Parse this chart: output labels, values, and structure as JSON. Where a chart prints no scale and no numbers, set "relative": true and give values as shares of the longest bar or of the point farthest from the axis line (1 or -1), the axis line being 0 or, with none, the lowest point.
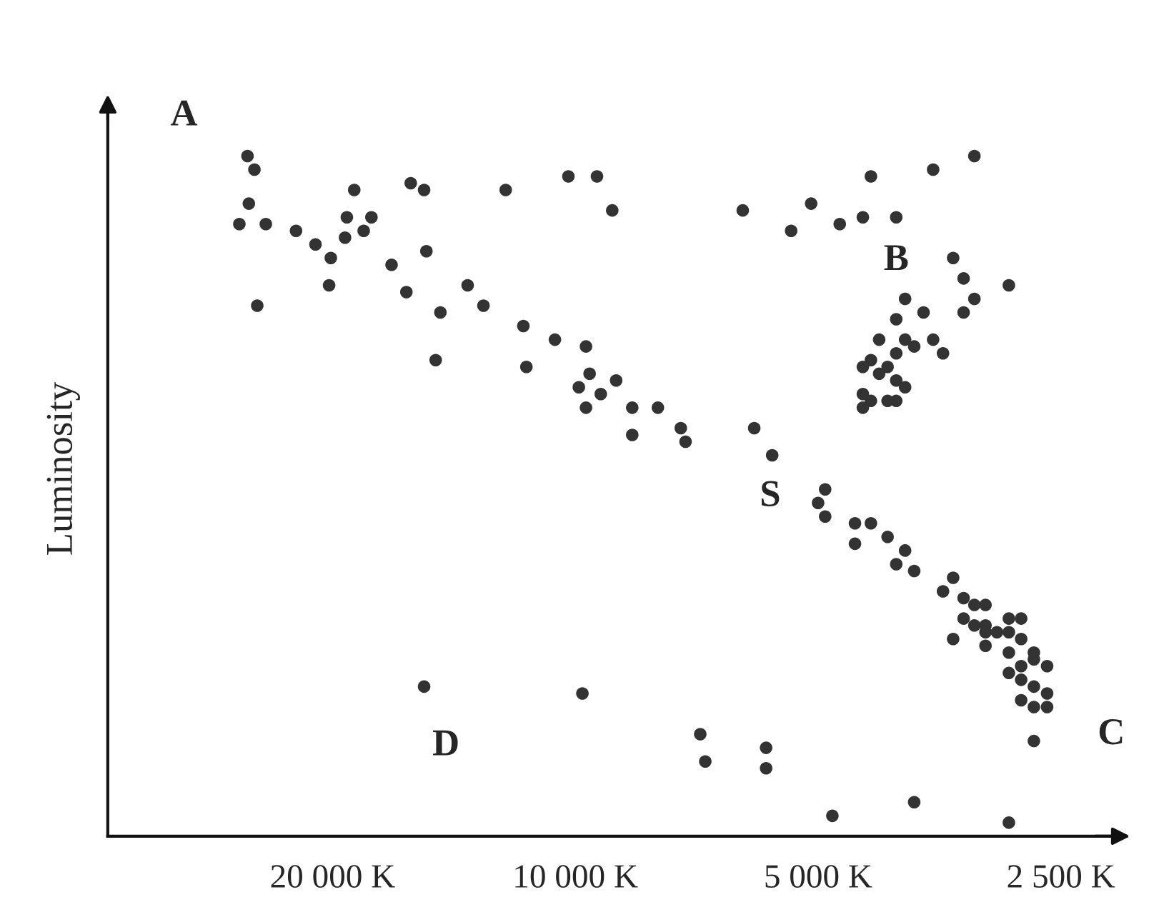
{
  "chart_data": {
    "type": "scatter",
    "ylabel": "Luminosity",
    "relative": true,
    "log": "x",
    "xlim": [
      38000,
      2100
    ],
    "xticks": [
      {
        "value": 20000,
        "label": "20 000 K"
      },
      {
        "value": 10000,
        "label": "10 000 K"
      },
      {
        "value": 5000,
        "label": "5 000 K"
      },
      {
        "value": 2500,
        "label": "2 500 K"
      }
    ],
    "tick_labels": "x",
    "grid": false,
    "legend": false,
    "marker": "circle",
    "series": [
      {
        "color": "#333333",
        "x": [
          25500,
          25000,
          18800,
          16000,
          15400,
          12200,
          10200,
          9400,
          9000,
          25400,
          26100,
          24200,
          22200,
          19200,
          17900,
          18300,
          19300,
          21000,
          20100,
          15300,
          16900,
          20200,
          16200,
          13600,
          13000,
          24800,
          14700,
          11600,
          10600,
          9700,
          14900,
          11500,
          9600,
          8900,
          9900,
          9300,
          9700,
          8500,
          7900,
          8500,
          7400,
          7300,
          6200,
          5100,
          5400,
          6000,
          5700,
          7000,
          6900,
          5800,
          5800,
          9800,
          15400,
          4700,
          4300,
          4400,
          4000,
          3600,
          3200,
          3400,
          3300,
          2900,
          3200,
          3300,
          3900,
          4000,
          3700,
          3600,
          3500,
          4200,
          3900,
          3800,
          4000,
          4300,
          4100,
          4400,
          4200,
          4000,
          3900,
          4400,
          4300,
          4100,
          4000,
          4400,
          4900,
          5000,
          4900,
          4500,
          4300,
          4500,
          4100,
          3900,
          4000,
          3800,
          3400,
          3500,
          3300,
          3200,
          3100,
          3300,
          3200,
          3100,
          3100,
          3000,
          2900,
          2800,
          2900,
          3400,
          3100,
          2900,
          2800,
          2700,
          2800,
          2700,
          2900,
          2800,
          2600,
          2700,
          2600,
          2800,
          2700,
          2600,
          2700,
          4800,
          3800,
          2900
        ],
        "values": [
          1.0,
          0.98,
          0.95,
          0.96,
          0.95,
          0.95,
          0.97,
          0.97,
          0.92,
          0.93,
          0.9,
          0.9,
          0.89,
          0.91,
          0.91,
          0.89,
          0.88,
          0.87,
          0.85,
          0.86,
          0.84,
          0.81,
          0.8,
          0.81,
          0.78,
          0.78,
          0.77,
          0.75,
          0.73,
          0.72,
          0.7,
          0.69,
          0.68,
          0.67,
          0.66,
          0.65,
          0.63,
          0.63,
          0.63,
          0.59,
          0.6,
          0.58,
          0.92,
          0.93,
          0.89,
          0.6,
          0.56,
          0.15,
          0.11,
          0.13,
          0.1,
          0.21,
          0.22,
          0.9,
          0.97,
          0.91,
          0.91,
          0.98,
          1.0,
          0.85,
          0.82,
          0.81,
          0.79,
          0.77,
          0.79,
          0.76,
          0.77,
          0.73,
          0.71,
          0.73,
          0.73,
          0.72,
          0.71,
          0.7,
          0.69,
          0.69,
          0.68,
          0.67,
          0.66,
          0.65,
          0.64,
          0.64,
          0.64,
          0.63,
          0.51,
          0.49,
          0.47,
          0.46,
          0.46,
          0.43,
          0.44,
          0.42,
          0.4,
          0.39,
          0.38,
          0.36,
          0.35,
          0.34,
          0.34,
          0.32,
          0.31,
          0.31,
          0.3,
          0.3,
          0.32,
          0.32,
          0.3,
          0.29,
          0.28,
          0.27,
          0.29,
          0.27,
          0.25,
          0.26,
          0.24,
          0.23,
          0.25,
          0.22,
          0.21,
          0.2,
          0.19,
          0.19,
          0.14,
          0.03,
          0.05,
          0.02
        ]
      }
    ],
    "annotations": [
      {
        "text": "A",
        "x": 25500,
        "y": 1.0
      },
      {
        "text": "B",
        "x": 4000,
        "y": 0.91
      },
      {
        "text": "S",
        "x": 5700,
        "y": 0.56
      },
      {
        "text": "C",
        "x": 2700,
        "y": 0.14
      },
      {
        "text": "D",
        "x": 15400,
        "y": 0.22
      }
    ]
  }
}
